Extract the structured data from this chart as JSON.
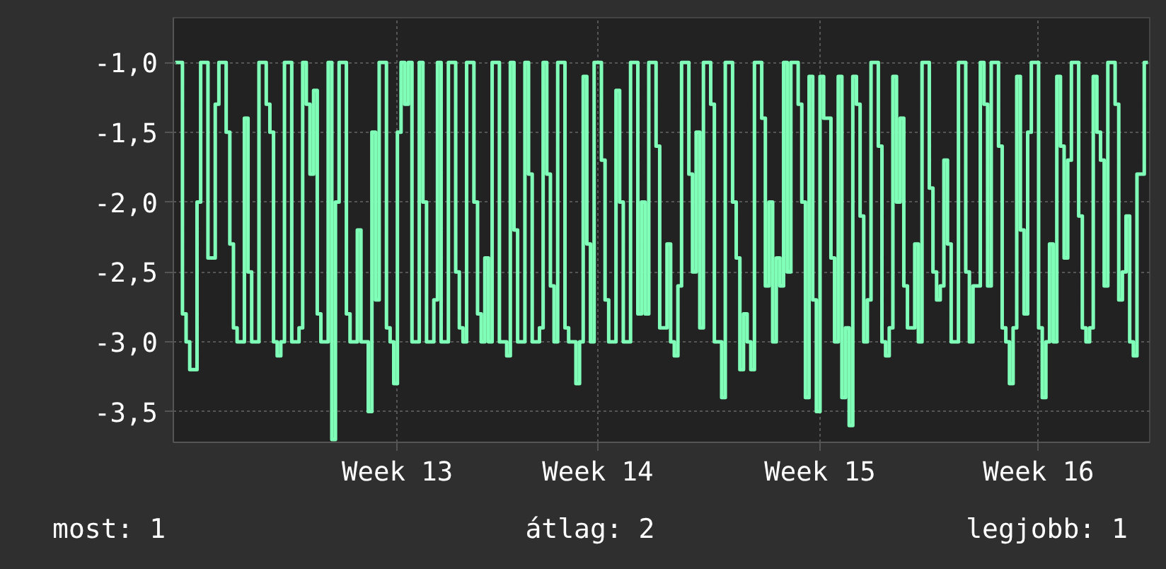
{
  "chart_data": {
    "type": "step",
    "categories": [
      null,
      null,
      null,
      null,
      null,
      null,
      null,
      null,
      null,
      null,
      null,
      null,
      null,
      null,
      null,
      null,
      null,
      null,
      null,
      null,
      null,
      null,
      null,
      null,
      null,
      null,
      null,
      null,
      null,
      null,
      null,
      null,
      null,
      null,
      null,
      null,
      null,
      null,
      null,
      null,
      null,
      null,
      null,
      null,
      null,
      null,
      null,
      null,
      null,
      null,
      null,
      null,
      null,
      null,
      null,
      null,
      null,
      null,
      null,
      null,
      null,
      "Week 13",
      null,
      null,
      null,
      null,
      null,
      null,
      null,
      null,
      null,
      null,
      null,
      null,
      null,
      null,
      null,
      null,
      null,
      null,
      null,
      null,
      null,
      null,
      null,
      null,
      null,
      null,
      null,
      null,
      null,
      null,
      null,
      null,
      null,
      null,
      null,
      null,
      null,
      null,
      null,
      null,
      null,
      null,
      null,
      null,
      null,
      null,
      null,
      null,
      null,
      null,
      null,
      null,
      null,
      null,
      "Week 14",
      null,
      null,
      null,
      null,
      null,
      null,
      null,
      null,
      null,
      null,
      null,
      null,
      null,
      null,
      null,
      null,
      null,
      null,
      null,
      null,
      null,
      null,
      null,
      null,
      null,
      null,
      null,
      null,
      null,
      null,
      null,
      null,
      null,
      null,
      null,
      null,
      null,
      null,
      null,
      null,
      null,
      null,
      null,
      null,
      null,
      null,
      null,
      null,
      null,
      null,
      null,
      null,
      null,
      null,
      null,
      null,
      null,
      null,
      null,
      null,
      "Week 15",
      null,
      null,
      null,
      null,
      null,
      null,
      null,
      null,
      null,
      null,
      null,
      null,
      null,
      null,
      null,
      null,
      null,
      null,
      null,
      null,
      null,
      null,
      null,
      null,
      null,
      null,
      null,
      null,
      null,
      null,
      null,
      null,
      null,
      null,
      null,
      null,
      null,
      null,
      null,
      null,
      null,
      null,
      null,
      null,
      null,
      null,
      null,
      null,
      null,
      null,
      null,
      null,
      null,
      null,
      null,
      null,
      null,
      null,
      null,
      "Week 16",
      null,
      null,
      null,
      null,
      null,
      null,
      null,
      null,
      null,
      null,
      null,
      null,
      null,
      null,
      null,
      null,
      null,
      null,
      null,
      null,
      null,
      null,
      null,
      null,
      null,
      null,
      null,
      null,
      null,
      null
    ],
    "series": [
      {
        "color": "#80ffb8",
        "values": [
          -1.0,
          -1.0,
          -2.8,
          -3.0,
          -3.2,
          -3.2,
          -2.0,
          -1.0,
          -1.0,
          -2.4,
          -2.4,
          -1.3,
          -1.0,
          -1.0,
          -1.5,
          -2.3,
          -2.9,
          -3.0,
          -3.0,
          -1.4,
          -2.5,
          -3.0,
          -3.0,
          -1.0,
          -1.0,
          -1.3,
          -1.5,
          -3.0,
          -3.1,
          -3.0,
          -1.0,
          -1.0,
          -3.0,
          -3.0,
          -2.9,
          -1.0,
          -1.3,
          -1.8,
          -1.2,
          -2.8,
          -3.0,
          -3.0,
          -1.0,
          -3.7,
          -2.0,
          -1.0,
          -1.0,
          -2.8,
          -3.0,
          -3.0,
          -2.2,
          -3.0,
          -3.0,
          -3.5,
          -1.5,
          -2.7,
          -1.0,
          -1.0,
          -2.9,
          -3.0,
          -3.3,
          -1.5,
          -1.0,
          -1.3,
          -1.0,
          -3.0,
          -3.0,
          -1.0,
          -2.0,
          -3.0,
          -3.0,
          -2.7,
          -1.0,
          -3.0,
          -3.0,
          -1.0,
          -1.0,
          -2.5,
          -2.9,
          -3.0,
          -1.0,
          -1.0,
          -2.0,
          -2.8,
          -3.0,
          -2.4,
          -3.0,
          -1.0,
          -1.0,
          -3.0,
          -3.0,
          -3.1,
          -1.0,
          -2.2,
          -3.0,
          -3.0,
          -1.0,
          -1.8,
          -3.0,
          -3.0,
          -2.9,
          -1.0,
          -1.8,
          -2.6,
          -3.0,
          -1.0,
          -1.0,
          -2.9,
          -3.0,
          -3.0,
          -3.3,
          -3.0,
          -1.1,
          -2.3,
          -3.0,
          -1.0,
          -1.0,
          -1.7,
          -2.7,
          -3.0,
          -3.0,
          -1.2,
          -2.0,
          -3.0,
          -3.0,
          -1.0,
          -1.0,
          -2.8,
          -2.0,
          -2.8,
          -1.0,
          -1.0,
          -1.6,
          -2.9,
          -2.9,
          -2.3,
          -3.0,
          -3.1,
          -2.6,
          -1.0,
          -1.0,
          -1.8,
          -2.5,
          -1.5,
          -2.9,
          -1.0,
          -1.0,
          -1.3,
          -3.0,
          -3.0,
          -3.4,
          -1.0,
          -1.0,
          -2.0,
          -2.4,
          -3.2,
          -2.8,
          -3.0,
          -3.2,
          -1.0,
          -1.0,
          -1.4,
          -2.6,
          -2.0,
          -3.0,
          -2.4,
          -2.6,
          -1.0,
          -2.5,
          -1.0,
          -1.0,
          -1.3,
          -2.0,
          -3.4,
          -1.1,
          -2.7,
          -3.5,
          -1.1,
          -1.4,
          -1.4,
          -2.4,
          -3.0,
          -1.1,
          -3.4,
          -2.9,
          -3.6,
          -1.1,
          -1.3,
          -2.1,
          -3.0,
          -2.7,
          -1.0,
          -1.0,
          -1.6,
          -3.0,
          -3.1,
          -2.9,
          -1.1,
          -2.0,
          -1.4,
          -2.6,
          -2.9,
          -2.9,
          -2.3,
          -3.0,
          -1.0,
          -1.0,
          -1.9,
          -2.5,
          -2.7,
          -2.6,
          -1.7,
          -2.3,
          -3.0,
          -3.0,
          -1.0,
          -1.0,
          -2.5,
          -3.0,
          -2.6,
          -2.6,
          -1.0,
          -1.3,
          -2.6,
          -1.0,
          -1.0,
          -1.6,
          -2.9,
          -3.0,
          -3.3,
          -2.9,
          -1.1,
          -2.2,
          -2.8,
          -1.5,
          -1.0,
          -1.0,
          -2.9,
          -3.4,
          -3.0,
          -2.3,
          -3.0,
          -1.1,
          -1.6,
          -2.4,
          -1.7,
          -1.0,
          -1.0,
          -2.1,
          -2.9,
          -3.0,
          -2.9,
          -1.1,
          -1.5,
          -1.7,
          -2.6,
          -1.0,
          -1.0,
          -1.3,
          -2.7,
          -2.5,
          -2.1,
          -3.0,
          -3.1,
          -1.8,
          -1.8,
          -1.0,
          -1.0
        ]
      }
    ],
    "ylim": [
      -3.72,
      -0.68
    ],
    "yticks": [
      {
        "value": -3.5,
        "label": "-3,5"
      },
      {
        "value": -3.0,
        "label": "-3,0"
      },
      {
        "value": -2.5,
        "label": "-2,5"
      },
      {
        "value": -2.0,
        "label": "-2,0"
      },
      {
        "value": -1.5,
        "label": "-1,5"
      },
      {
        "value": -1.0,
        "label": "-1,0"
      }
    ],
    "grid": true,
    "annotations": [
      "most: 1",
      "átlag: 2",
      "legjobb: 1"
    ]
  }
}
